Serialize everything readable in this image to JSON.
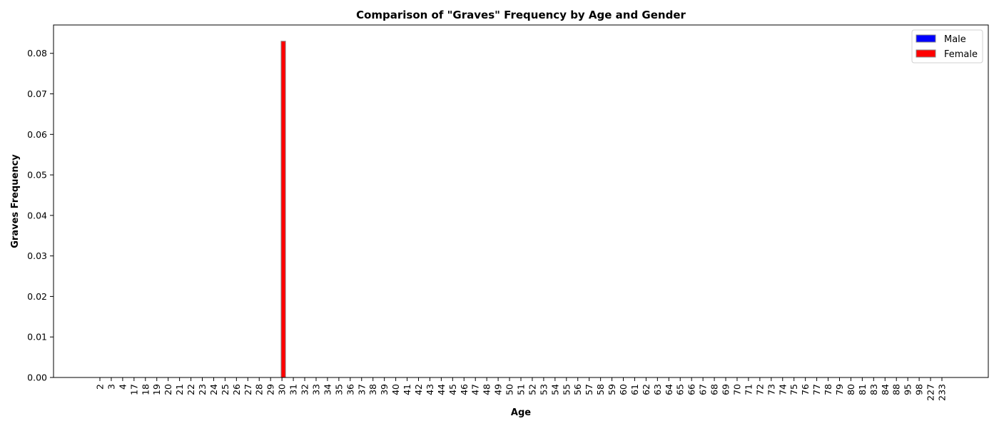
{
  "chart_data": {
    "type": "bar",
    "title": "Comparison of \"Graves\" Frequency by Age and Gender",
    "xlabel": "Age",
    "ylabel": "Graves Frequency",
    "categories": [
      "2",
      "3",
      "4",
      "17",
      "18",
      "19",
      "20",
      "21",
      "22",
      "23",
      "24",
      "25",
      "26",
      "27",
      "28",
      "29",
      "30",
      "31",
      "32",
      "33",
      "34",
      "35",
      "36",
      "37",
      "38",
      "39",
      "40",
      "41",
      "42",
      "43",
      "44",
      "45",
      "46",
      "47",
      "48",
      "49",
      "50",
      "51",
      "52",
      "53",
      "54",
      "55",
      "56",
      "57",
      "58",
      "59",
      "60",
      "61",
      "62",
      "63",
      "64",
      "65",
      "66",
      "67",
      "68",
      "69",
      "70",
      "71",
      "72",
      "73",
      "74",
      "75",
      "76",
      "77",
      "78",
      "79",
      "80",
      "81",
      "83",
      "84",
      "88",
      "95",
      "98",
      "227",
      "233"
    ],
    "series": [
      {
        "name": "Male",
        "color": "#0000ff",
        "values": [
          0,
          0,
          0,
          0,
          0,
          0,
          0,
          0,
          0,
          0,
          0,
          0,
          0,
          0,
          0,
          0,
          0,
          0,
          0,
          0,
          0,
          0,
          0,
          0,
          0,
          0,
          0,
          0,
          0,
          0,
          0,
          0,
          0,
          0,
          0,
          0,
          0,
          0,
          0,
          0,
          0,
          0,
          0,
          0,
          0,
          0,
          0,
          0,
          0,
          0,
          0,
          0,
          0,
          0,
          0,
          0,
          0,
          0,
          0,
          0,
          0,
          0,
          0,
          0,
          0,
          0,
          0,
          0,
          0,
          0,
          0,
          0,
          0,
          0,
          0
        ]
      },
      {
        "name": "Female",
        "color": "#ff0000",
        "values": [
          0,
          0,
          0,
          0,
          0,
          0,
          0,
          0,
          0,
          0,
          0,
          0,
          0,
          0,
          0,
          0,
          0.083,
          0,
          0,
          0,
          0,
          0,
          0,
          0,
          0,
          0,
          0,
          0,
          0,
          0,
          0,
          0,
          0,
          0,
          0,
          0,
          0,
          0,
          0,
          0,
          0,
          0,
          0,
          0,
          0,
          0,
          0,
          0,
          0,
          0,
          0,
          0,
          0,
          0,
          0,
          0,
          0,
          0,
          0,
          0,
          0,
          0,
          0,
          0,
          0,
          0,
          0,
          0,
          0,
          0,
          0,
          0,
          0,
          0,
          0
        ]
      }
    ],
    "ylim": [
      0,
      0.087
    ],
    "yticks": [
      "0.00",
      "0.01",
      "0.02",
      "0.03",
      "0.04",
      "0.05",
      "0.06",
      "0.07",
      "0.08"
    ],
    "legend_position": "top-right",
    "grid": false
  }
}
